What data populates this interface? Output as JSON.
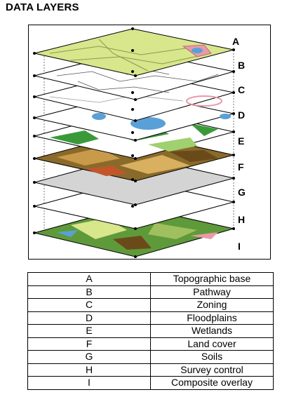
{
  "title": "DATA LAYERS",
  "layers": [
    {
      "code": "A",
      "name": "Topographic base",
      "fill": "#d8e68c"
    },
    {
      "code": "B",
      "name": "Pathway",
      "fill": "#ffffff"
    },
    {
      "code": "C",
      "name": "Zoning",
      "fill": "#ffffff"
    },
    {
      "code": "D",
      "name": "Floodplains",
      "fill": "#ffffff"
    },
    {
      "code": "E",
      "name": "Wetlands",
      "fill": "#ffffff"
    },
    {
      "code": "F",
      "name": "Land cover",
      "fill": "#8a6a2a"
    },
    {
      "code": "G",
      "name": "Soils",
      "fill": "#d4d4d4"
    },
    {
      "code": "H",
      "name": "Survey control",
      "fill": "#ffffff"
    },
    {
      "code": "I",
      "name": "Composite overlay",
      "fill": "#5f9a3a"
    }
  ],
  "colors": {
    "water": "#5aa0d8",
    "vegetation": "#3a9a3a",
    "pink": "#e89aa8",
    "brown": "#6b4a1a"
  }
}
